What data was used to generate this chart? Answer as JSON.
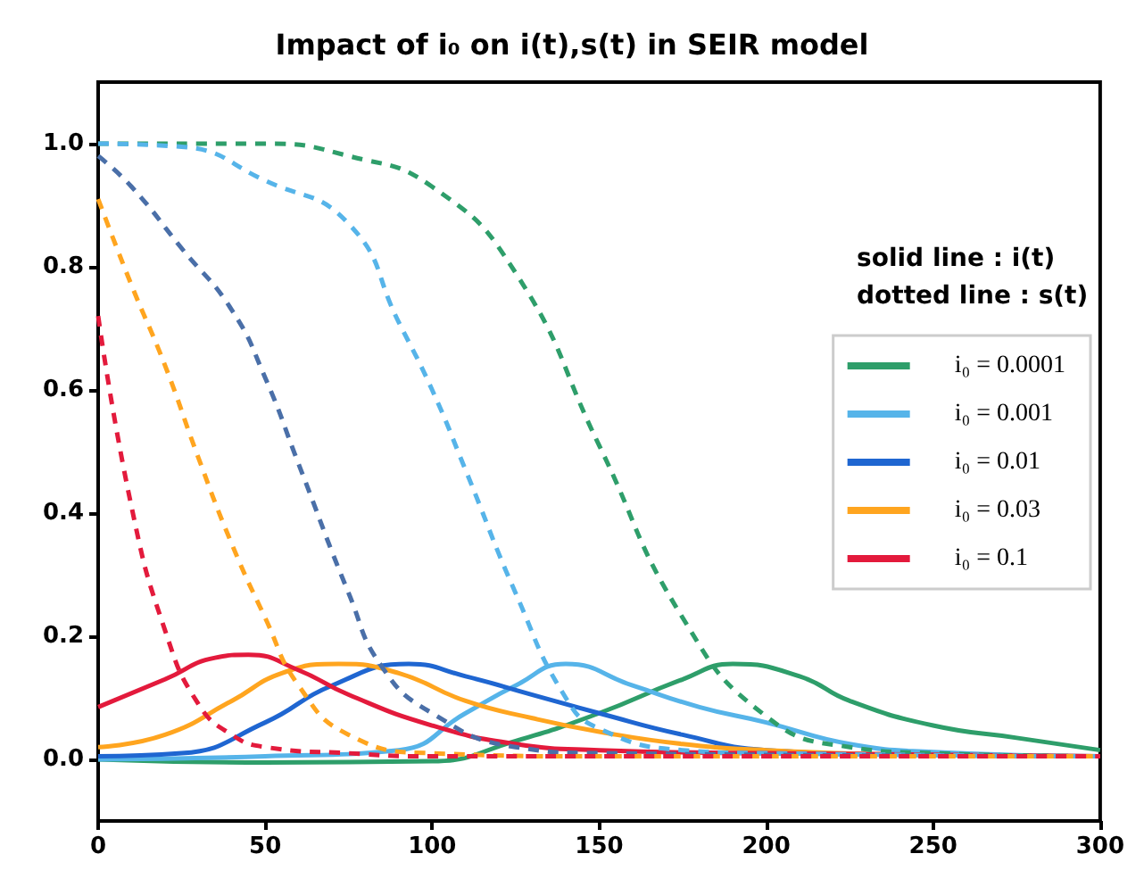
{
  "chart_data": {
    "type": "line",
    "title": "Impact of i₀ on i(t),s(t) in SEIR model",
    "annotations": [
      "solid line : i(t)",
      "dotted line : s(t)"
    ],
    "xlim": [
      0,
      300
    ],
    "xticks": [
      0,
      50,
      100,
      150,
      200,
      250,
      300
    ],
    "ylim": [
      -0.1,
      1.1
    ],
    "yticks": [
      {
        "value": 0,
        "label": "0.0"
      },
      {
        "value": 0.2,
        "label": "0.2"
      },
      {
        "value": 0.4,
        "label": "0.4"
      },
      {
        "value": 0.6,
        "label": "0.6"
      },
      {
        "value": 0.8,
        "label": "0.8"
      },
      {
        "value": 1,
        "label": "1.0"
      }
    ],
    "grid": false,
    "legend": "right",
    "marker": "none",
    "series": [
      {
        "name": "i₀ = 0.0001",
        "color": "#2e9e6a",
        "line_style": "solid",
        "x": [
          0,
          50,
          100,
          125,
          150,
          175,
          190,
          210,
          225,
          250,
          275,
          300
        ],
        "values": [
          0,
          -0.005,
          -0.003,
          0.03,
          0.075,
          0.13,
          0.155,
          0.135,
          0.095,
          0.055,
          0.035,
          0.015
        ]
      },
      {
        "name": "i₀ = 0.001",
        "color": "#56b4e9",
        "line_style": "solid",
        "x": [
          0,
          50,
          90,
          110,
          125,
          140,
          160,
          180,
          200,
          225,
          250,
          300
        ],
        "values": [
          0,
          0.005,
          0.015,
          0.075,
          0.12,
          0.155,
          0.12,
          0.085,
          0.06,
          0.025,
          0.012,
          0.005
        ]
      },
      {
        "name": "i₀ = 0.01",
        "color": "#1f66d1",
        "line_style": "solid",
        "x": [
          0,
          25,
          50,
          70,
          93,
          110,
          130,
          150,
          175,
          200,
          250,
          300
        ],
        "values": [
          0.005,
          0.01,
          0.06,
          0.12,
          0.155,
          0.135,
          0.105,
          0.075,
          0.04,
          0.015,
          0.007,
          0.005
        ]
      },
      {
        "name": "i₀ = 0.03",
        "color": "#ffa51f",
        "line_style": "solid",
        "x": [
          0,
          20,
          40,
          55,
          72,
          90,
          110,
          130,
          150,
          175,
          200,
          250,
          300
        ],
        "values": [
          0.02,
          0.04,
          0.095,
          0.14,
          0.155,
          0.14,
          0.095,
          0.067,
          0.045,
          0.025,
          0.015,
          0.007,
          0.005
        ]
      },
      {
        "name": "i₀ = 0.1",
        "color": "#e31a3c",
        "line_style": "solid",
        "x": [
          0,
          20,
          35,
          45,
          60,
          75,
          100,
          125,
          150,
          200,
          300
        ],
        "values": [
          0.085,
          0.13,
          0.165,
          0.17,
          0.145,
          0.105,
          0.055,
          0.025,
          0.015,
          0.01,
          0.005
        ]
      },
      {
        "color": "#2e9e6a",
        "line_style": "dashed",
        "x": [
          0,
          50,
          75,
          100,
          125,
          150,
          175,
          200,
          225,
          250,
          300
        ],
        "values": [
          1.0,
          1.0,
          0.98,
          0.93,
          0.79,
          0.51,
          0.23,
          0.07,
          0.02,
          0.01,
          0.005
        ]
      },
      {
        "color": "#56b4e9",
        "line_style": "dashed",
        "x": [
          0,
          25,
          50,
          75,
          90,
          100,
          110,
          125,
          140,
          150,
          175,
          200,
          300
        ],
        "values": [
          1.0,
          0.995,
          0.94,
          0.87,
          0.71,
          0.6,
          0.47,
          0.27,
          0.1,
          0.05,
          0.015,
          0.01,
          0.005
        ]
      },
      {
        "color": "#4a6fa8",
        "line_style": "dashed",
        "x": [
          0,
          10,
          25,
          40,
          50,
          60,
          75,
          85,
          100,
          125,
          150,
          300
        ],
        "values": [
          0.98,
          0.93,
          0.83,
          0.73,
          0.62,
          0.48,
          0.27,
          0.15,
          0.075,
          0.02,
          0.01,
          0.005
        ]
      },
      {
        "color": "#ffa51f",
        "line_style": "dashed",
        "x": [
          0,
          10,
          20,
          30,
          40,
          50,
          60,
          75,
          100,
          150,
          300
        ],
        "values": [
          0.91,
          0.77,
          0.64,
          0.49,
          0.35,
          0.23,
          0.12,
          0.04,
          0.01,
          0.005,
          0.005
        ]
      },
      {
        "color": "#e31a3c",
        "line_style": "dashed",
        "x": [
          0,
          10,
          20,
          30,
          40,
          50,
          75,
          100,
          300
        ],
        "values": [
          0.72,
          0.41,
          0.21,
          0.09,
          0.04,
          0.02,
          0.01,
          0.005,
          0.005
        ]
      }
    ]
  }
}
